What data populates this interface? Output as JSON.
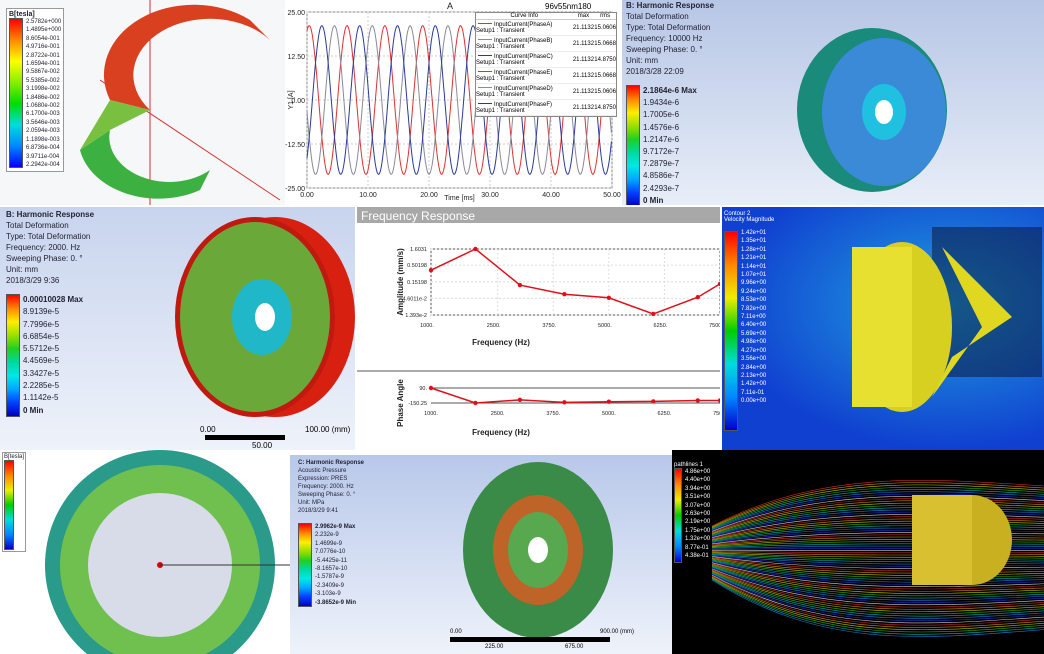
{
  "magnet_panel": {
    "legend_title": "B[tesla]",
    "legend_values": [
      "2.5782e+000",
      "1.4895e+000",
      "8.6054e-001",
      "4.9716e-001",
      "2.8722e-001",
      "1.6594e-001",
      "9.5867e-002",
      "5.5385e-002",
      "3.1998e-002",
      "1.8486e-002",
      "1.0680e-002",
      "6.1700e-003",
      "3.5646e-003",
      "2.0594e-003",
      "1.1898e-003",
      "6.8736e-004",
      "3.9711e-004",
      "2.2942e-004"
    ]
  },
  "current_chart": {
    "chart_data": {
      "type": "line",
      "title": "A",
      "xlabel": "Time [ms]",
      "ylabel": "Y1 [A]",
      "xlim": [
        0,
        50
      ],
      "ylim": [
        -25,
        25
      ],
      "x_ticks": [
        "0.00",
        "10.00",
        "20.00",
        "30.00",
        "40.00",
        "50.00"
      ],
      "y_ticks": [
        "25.00",
        "12.50",
        "0.00",
        "-12.50",
        "-25.00"
      ],
      "grid": true,
      "legend_placement": "top-right",
      "legend_columns": [
        "Curve Info",
        "max",
        "rms"
      ],
      "series": [
        {
          "name": "InputCurrent(PhaseA)",
          "sub": "Setup1 : Transient",
          "max": "21.1132",
          "rms": "15.0606",
          "color": "#e03030",
          "amplitude": 21.1132,
          "phase_deg": 0
        },
        {
          "name": "InputCurrent(PhaseB)",
          "sub": "Setup1 : Transient",
          "max": "21.1132",
          "rms": "15.0668",
          "color": "#8a8a9a",
          "amplitude": 21.1132,
          "phase_deg": 120
        },
        {
          "name": "InputCurrent(PhaseC)",
          "sub": "Setup1 : Transient",
          "max": "21.1132",
          "rms": "14.8750",
          "color": "#2a3a9a",
          "amplitude": 21.1132,
          "phase_deg": 240
        },
        {
          "name": "InputCurrent(PhaseE)",
          "sub": "Setup1 : Transient",
          "max": "21.1132",
          "rms": "15.0668",
          "color": "#e03030"
        },
        {
          "name": "InputCurrent(PhaseD)",
          "sub": "Setup1 : Transient",
          "max": "21.1132",
          "rms": "15.0606",
          "color": "#8a8a9a"
        },
        {
          "name": "InputCurrent(PhaseF)",
          "sub": "Setup1 : Transient",
          "max": "21.1132",
          "rms": "14.8750",
          "color": "#2a3a9a"
        }
      ]
    },
    "design_name": "96v55nm180"
  },
  "harmonic_top": {
    "header": [
      "B: Harmonic Response",
      "Total Deformation",
      "Type: Total Deformation",
      "Frequency: 10000 Hz",
      "Sweeping Phase: 0. °",
      "Unit: mm",
      "2018/3/28 22:09"
    ],
    "legend_values": [
      "2.1864e-6 Max",
      "1.9434e-6",
      "1.7005e-6",
      "1.4576e-6",
      "1.2147e-6",
      "9.7172e-7",
      "7.2879e-7",
      "4.8586e-7",
      "2.4293e-7",
      "0 Min"
    ]
  },
  "harmonic_mid": {
    "header": [
      "B: Harmonic Response",
      "Total Deformation",
      "Type: Total Deformation",
      "Frequency: 2000. Hz",
      "Sweeping Phase: 0. °",
      "Unit: mm",
      "2018/3/29 9:36"
    ],
    "legend_values": [
      "0.00010028 Max",
      "8.9139e-5",
      "7.7996e-5",
      "6.6854e-5",
      "5.5712e-5",
      "4.4569e-5",
      "3.3427e-5",
      "2.2285e-5",
      "1.1142e-5",
      "0 Min"
    ],
    "scale": [
      "0.00",
      "100.00 (mm)",
      "50.00"
    ]
  },
  "frequency_response": {
    "title": "Frequency Response",
    "chart_data": [
      {
        "type": "line",
        "ylabel": "Amplitude (mm/s)",
        "xlabel": "Frequency (Hz)",
        "yscale": "log",
        "ylim": [
          0.01393,
          1.6031
        ],
        "xlim": [
          1000,
          7500
        ],
        "y_ticks": [
          "1.6031",
          "0.50198",
          "0.15198",
          "4.6011e-2",
          "1.393e-2"
        ],
        "x_ticks": [
          "1000.",
          "2500.",
          "3750.",
          "5000.",
          "6250.",
          "7500."
        ],
        "x": [
          1000,
          2000,
          3000,
          4000,
          5000,
          6000,
          7000,
          7500
        ],
        "values": [
          0.35,
          1.6031,
          0.12,
          0.062,
          0.048,
          0.015,
          0.05,
          0.13
        ],
        "color": "#e0101a",
        "grid": true
      },
      {
        "type": "line",
        "ylabel": "Phase Angle",
        "xlabel": "Frequency (Hz)",
        "ylim": [
          -150.25,
          90
        ],
        "xlim": [
          1000,
          7500
        ],
        "y_ticks": [
          "90.",
          "-150.25"
        ],
        "x_ticks": [
          "1000.",
          "2500.",
          "3750.",
          "5000.",
          "6250.",
          "7500."
        ],
        "x": [
          1000,
          2000,
          3000,
          4000,
          5000,
          6000,
          7000,
          7500
        ],
        "values": [
          90,
          -150.25,
          -100,
          -140,
          -130,
          -125,
          -110,
          -110
        ],
        "color": "#e0101a"
      }
    ]
  },
  "cfd_top": {
    "header": [
      "Contour 2",
      "Velocity Magnitude"
    ],
    "legend_values": [
      "1.42e+01",
      "1.35e+01",
      "1.28e+01",
      "1.21e+01",
      "1.14e+01",
      "1.07e+01",
      "9.96e+00",
      "9.24e+00",
      "8.53e+00",
      "7.82e+00",
      "7.11e+00",
      "6.40e+00",
      "5.69e+00",
      "4.98e+00",
      "4.27e+00",
      "3.56e+00",
      "2.84e+00",
      "2.13e+00",
      "1.42e+00",
      "7.11e-01",
      "0.00e+00"
    ]
  },
  "acoustic": {
    "header": [
      "C: Harmonic Response",
      "Acoustic Pressure",
      "Expression: PRES",
      "Frequency: 2000. Hz",
      "Sweeping Phase: 0. °",
      "Unit: MPa",
      "2018/3/29 9:41"
    ],
    "legend_values": [
      "2.9962e-9 Max",
      "2.232e-9",
      "1.4699e-9",
      "7.0776e-10",
      "-5.4425e-11",
      "-8.1657e-10",
      "-1.5787e-9",
      "-2.3409e-9",
      "-3.103e-9",
      "-3.8652e-9 Min"
    ],
    "scale": [
      "0.00",
      "900.00 (mm)",
      "225.00",
      "675.00"
    ]
  },
  "ring_panel": {
    "legend_title": "B[tesla]"
  },
  "streamlines": {
    "legend_title": "pathlines 1",
    "legend_values": [
      "4.86e+00",
      "4.40e+00",
      "3.94e+00",
      "3.51e+00",
      "3.07e+00",
      "2.63e+00",
      "2.19e+00",
      "1.75e+00",
      "1.32e+00",
      "8.77e-01",
      "4.38e-01"
    ]
  },
  "colors": {
    "rainbow": [
      "#ff0000",
      "#ff8800",
      "#ffee00",
      "#9be000",
      "#20d020",
      "#00d8a0",
      "#00e8e8",
      "#00a8ff",
      "#0040ff",
      "#0000c0"
    ]
  }
}
